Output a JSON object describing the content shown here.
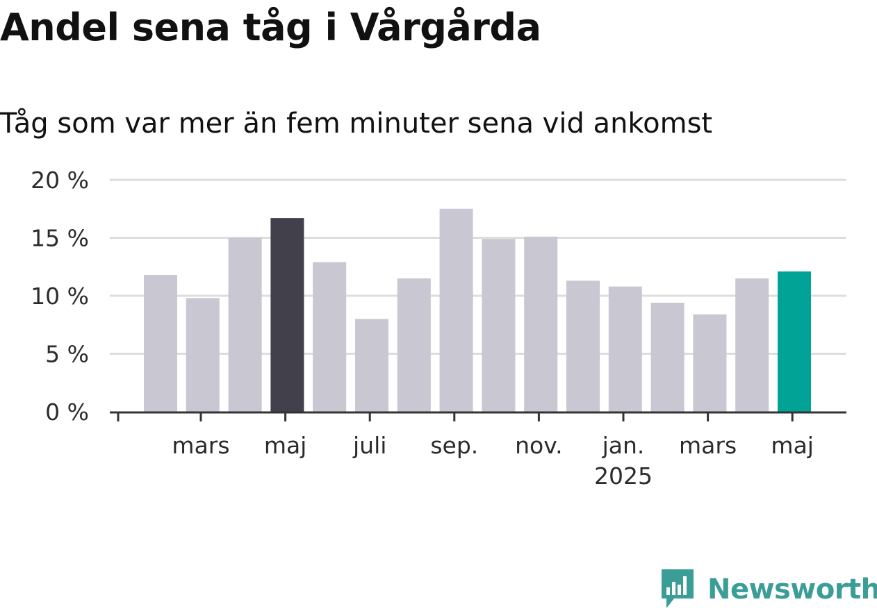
{
  "title": "Andel sena tåg i Vårgårda",
  "subtitle": "Tåg som var mer än fem minuter sena vid ankomst",
  "brand": "Newsworthy",
  "colors": {
    "default_bar": "#c8c7d2",
    "highlight_dark": "#41404b",
    "highlight_current": "#00a396",
    "gridline": "#dddddd",
    "axis": "#333333",
    "brand": "#3a9d96"
  },
  "chart_data": {
    "type": "bar",
    "title": "Andel sena tåg i Vårgårda",
    "subtitle": "Tåg som var mer än fem minuter sena vid ankomst",
    "categories": [
      "2024-02",
      "2024-03",
      "2024-04",
      "2024-05",
      "2024-06",
      "2024-07",
      "2024-08",
      "2024-09",
      "2024-10",
      "2024-11",
      "2024-12",
      "2025-01",
      "2025-02",
      "2025-03",
      "2025-04",
      "2025-05"
    ],
    "values": [
      11.8,
      9.8,
      15.0,
      16.7,
      12.9,
      8.0,
      11.5,
      17.5,
      14.9,
      15.1,
      11.3,
      10.8,
      9.4,
      8.4,
      11.5,
      12.1
    ],
    "highlight": {
      "dark_index": 3,
      "current_index": 15
    },
    "ylim": [
      0,
      20
    ],
    "yticks": [
      "0 %",
      "5 %",
      "10 %",
      "15 %",
      "20 %"
    ],
    "xticks": [
      {
        "index": 1,
        "label": "mars",
        "sublabel": ""
      },
      {
        "index": 3,
        "label": "maj",
        "sublabel": ""
      },
      {
        "index": 5,
        "label": "juli",
        "sublabel": ""
      },
      {
        "index": 7,
        "label": "sep.",
        "sublabel": ""
      },
      {
        "index": 9,
        "label": "nov.",
        "sublabel": ""
      },
      {
        "index": 11,
        "label": "jan.",
        "sublabel": "2025"
      },
      {
        "index": 13,
        "label": "mars",
        "sublabel": ""
      },
      {
        "index": 15,
        "label": "maj",
        "sublabel": ""
      }
    ],
    "grid": true
  }
}
